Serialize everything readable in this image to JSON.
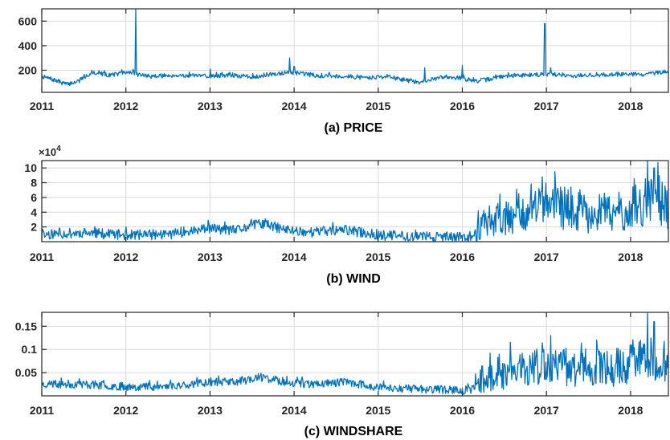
{
  "colors": {
    "series": "#0072BD",
    "axis": "#262626",
    "grid": "#d9d9d9"
  },
  "chart_data": [
    {
      "type": "line",
      "title": "(a) PRICE",
      "xlabel": "",
      "ylabel": "",
      "x_ticks": [
        "2011",
        "2012",
        "2013",
        "2014",
        "2015",
        "2016",
        "2017",
        "2018"
      ],
      "y_ticks": [
        "200",
        "400",
        "600"
      ],
      "xlim": [
        2011.0,
        2018.45
      ],
      "ylim": [
        20,
        700
      ],
      "grid": true,
      "series": [
        {
          "anchors": [
            [
              2011.0,
              150
            ],
            [
              2011.15,
              120
            ],
            [
              2011.3,
              85
            ],
            [
              2011.45,
              115
            ],
            [
              2011.6,
              185
            ],
            [
              2011.8,
              160
            ],
            [
              2011.95,
              175
            ],
            [
              2012.08,
              185
            ],
            [
              2012.15,
              165
            ],
            [
              2012.3,
              150
            ],
            [
              2012.6,
              160
            ],
            [
              2012.9,
              150
            ],
            [
              2013.2,
              160
            ],
            [
              2013.5,
              145
            ],
            [
              2013.7,
              165
            ],
            [
              2013.9,
              180
            ],
            [
              2014.1,
              170
            ],
            [
              2014.3,
              155
            ],
            [
              2014.6,
              150
            ],
            [
              2014.9,
              140
            ],
            [
              2015.1,
              150
            ],
            [
              2015.3,
              120
            ],
            [
              2015.5,
              100
            ],
            [
              2015.8,
              150
            ],
            [
              2016.0,
              135
            ],
            [
              2016.15,
              110
            ],
            [
              2016.3,
              125
            ],
            [
              2016.5,
              150
            ],
            [
              2016.7,
              160
            ],
            [
              2016.9,
              165
            ],
            [
              2017.1,
              165
            ],
            [
              2017.3,
              155
            ],
            [
              2017.6,
              160
            ],
            [
              2017.9,
              170
            ],
            [
              2018.1,
              165
            ],
            [
              2018.3,
              175
            ],
            [
              2018.45,
              180
            ]
          ],
          "spikes": [
            [
              2012.12,
              695
            ],
            [
              2013.95,
              300
            ],
            [
              2014.0,
              230
            ],
            [
              2015.55,
              220
            ],
            [
              2016.0,
              240
            ],
            [
              2016.98,
              580
            ],
            [
              2017.05,
              220
            ],
            [
              2013.0,
              210
            ]
          ],
          "noise": 18,
          "seed": 7
        }
      ]
    },
    {
      "type": "line",
      "title": "(b) WIND",
      "xlabel": "",
      "ylabel": "",
      "multiplier": "×10",
      "multiplier_exp": "4",
      "x_ticks": [
        "2011",
        "2012",
        "2013",
        "2014",
        "2015",
        "2016",
        "2017",
        "2018"
      ],
      "y_ticks": [
        "2",
        "4",
        "6",
        "8",
        "10"
      ],
      "y_scale": 10000,
      "xlim": [
        2011.0,
        2018.45
      ],
      "ylim": [
        0,
        11
      ],
      "grid": true,
      "series": [
        {
          "anchors": [
            [
              2011.0,
              1.0
            ],
            [
              2011.5,
              1.2
            ],
            [
              2012.0,
              0.9
            ],
            [
              2012.5,
              1.0
            ],
            [
              2013.0,
              1.8
            ],
            [
              2013.3,
              1.5
            ],
            [
              2013.6,
              2.5
            ],
            [
              2013.9,
              1.6
            ],
            [
              2014.2,
              1.3
            ],
            [
              2014.6,
              1.6
            ],
            [
              2015.0,
              0.9
            ],
            [
              2015.5,
              0.7
            ],
            [
              2016.0,
              0.6
            ],
            [
              2016.15,
              0.8
            ],
            [
              2016.2,
              2.5
            ],
            [
              2016.5,
              3.5
            ],
            [
              2016.8,
              4.2
            ],
            [
              2017.1,
              4.8
            ],
            [
              2017.4,
              4.0
            ],
            [
              2017.8,
              3.8
            ],
            [
              2018.1,
              5.0
            ],
            [
              2018.3,
              5.5
            ],
            [
              2018.45,
              4.5
            ]
          ],
          "spikes": [
            [
              2018.2,
              11.0
            ],
            [
              2018.28,
              10.0
            ],
            [
              2017.1,
              9.5
            ],
            [
              2016.95,
              8.8
            ]
          ],
          "noise": 0.7,
          "noise_growth": 2.0,
          "seed": 11
        }
      ]
    },
    {
      "type": "line",
      "title": "(c) WINDSHARE",
      "xlabel": "",
      "ylabel": "",
      "x_ticks": [
        "2011",
        "2012",
        "2013",
        "2014",
        "2015",
        "2016",
        "2017",
        "2018"
      ],
      "y_ticks": [
        "0.05",
        "0.1",
        "0.15"
      ],
      "xlim": [
        2011.0,
        2018.45
      ],
      "ylim": [
        0,
        0.18
      ],
      "grid": true,
      "series": [
        {
          "anchors": [
            [
              2011.0,
              0.025
            ],
            [
              2011.5,
              0.025
            ],
            [
              2012.0,
              0.02
            ],
            [
              2012.5,
              0.02
            ],
            [
              2013.0,
              0.03
            ],
            [
              2013.3,
              0.03
            ],
            [
              2013.6,
              0.04
            ],
            [
              2013.9,
              0.03
            ],
            [
              2014.2,
              0.025
            ],
            [
              2014.6,
              0.03
            ],
            [
              2015.0,
              0.018
            ],
            [
              2015.5,
              0.015
            ],
            [
              2016.0,
              0.012
            ],
            [
              2016.15,
              0.015
            ],
            [
              2016.2,
              0.04
            ],
            [
              2016.5,
              0.05
            ],
            [
              2016.8,
              0.06
            ],
            [
              2017.1,
              0.065
            ],
            [
              2017.4,
              0.06
            ],
            [
              2017.8,
              0.06
            ],
            [
              2018.1,
              0.075
            ],
            [
              2018.3,
              0.08
            ],
            [
              2018.45,
              0.07
            ]
          ],
          "spikes": [
            [
              2018.2,
              0.178
            ],
            [
              2018.28,
              0.16
            ],
            [
              2017.05,
              0.13
            ],
            [
              2017.6,
              0.12
            ]
          ],
          "noise": 0.009,
          "noise_growth": 2.2,
          "seed": 23
        }
      ]
    }
  ]
}
